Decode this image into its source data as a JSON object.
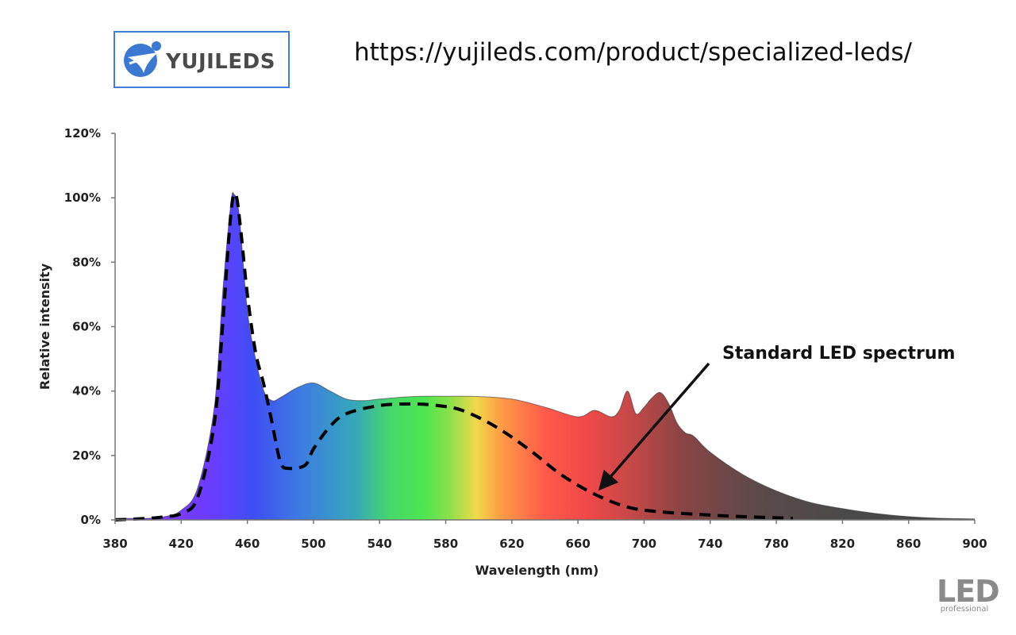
{
  "header": {
    "logo_text": "YUJILEDS",
    "url": "https://yujileds.com/product/specialized-leds/"
  },
  "footer": {
    "badge_main": "LED",
    "badge_sub": "professional"
  },
  "chart_data": {
    "type": "area",
    "xlabel": "Wavelength (nm)",
    "ylabel": "Relative intensity",
    "xlim": [
      380,
      900
    ],
    "ylim": [
      0,
      120
    ],
    "x_ticks": [
      380,
      420,
      460,
      500,
      540,
      580,
      620,
      660,
      700,
      740,
      780,
      820,
      860,
      900
    ],
    "y_ticks": [
      0,
      20,
      40,
      60,
      80,
      100,
      120
    ],
    "y_tick_labels": [
      "0%",
      "20%",
      "40%",
      "60%",
      "80%",
      "100%",
      "120%"
    ],
    "grid": false,
    "series": [
      {
        "style": "spectral-fill",
        "points": [
          [
            380,
            0.5
          ],
          [
            400,
            0.5
          ],
          [
            410,
            1
          ],
          [
            420,
            3
          ],
          [
            430,
            10
          ],
          [
            440,
            35
          ],
          [
            445,
            70
          ],
          [
            450,
            98
          ],
          [
            452,
            101
          ],
          [
            455,
            95
          ],
          [
            460,
            65
          ],
          [
            465,
            50
          ],
          [
            470,
            40
          ],
          [
            475,
            37
          ],
          [
            480,
            38
          ],
          [
            490,
            41
          ],
          [
            500,
            42.5
          ],
          [
            510,
            40
          ],
          [
            520,
            37.5
          ],
          [
            530,
            37
          ],
          [
            540,
            37.5
          ],
          [
            560,
            38.3
          ],
          [
            580,
            38.4
          ],
          [
            600,
            38.3
          ],
          [
            620,
            37.5
          ],
          [
            640,
            35
          ],
          [
            660,
            32
          ],
          [
            670,
            34
          ],
          [
            680,
            32
          ],
          [
            685,
            34
          ],
          [
            690,
            40
          ],
          [
            695,
            33
          ],
          [
            700,
            35
          ],
          [
            705,
            38
          ],
          [
            710,
            39.5
          ],
          [
            715,
            36
          ],
          [
            720,
            30
          ],
          [
            725,
            27
          ],
          [
            730,
            26
          ],
          [
            740,
            21
          ],
          [
            760,
            14
          ],
          [
            780,
            9
          ],
          [
            800,
            5.5
          ],
          [
            820,
            3.5
          ],
          [
            840,
            2
          ],
          [
            860,
            1
          ],
          [
            880,
            0.5
          ],
          [
            900,
            0.3
          ]
        ]
      },
      {
        "name": "Standard LED spectrum",
        "style": "dashed",
        "points": [
          [
            380,
            0
          ],
          [
            400,
            0.5
          ],
          [
            410,
            1
          ],
          [
            420,
            2
          ],
          [
            430,
            7
          ],
          [
            440,
            30
          ],
          [
            445,
            60
          ],
          [
            450,
            95
          ],
          [
            453,
            101
          ],
          [
            456,
            90
          ],
          [
            460,
            70
          ],
          [
            465,
            52
          ],
          [
            470,
            42
          ],
          [
            475,
            30
          ],
          [
            480,
            18
          ],
          [
            485,
            16
          ],
          [
            495,
            17
          ],
          [
            500,
            22
          ],
          [
            510,
            29
          ],
          [
            520,
            33
          ],
          [
            540,
            35.5
          ],
          [
            560,
            36
          ],
          [
            575,
            35.5
          ],
          [
            590,
            34
          ],
          [
            610,
            29
          ],
          [
            630,
            22
          ],
          [
            650,
            14
          ],
          [
            670,
            8
          ],
          [
            690,
            4
          ],
          [
            710,
            2.5
          ],
          [
            740,
            1.5
          ],
          [
            760,
            1
          ],
          [
            790,
            0.5
          ]
        ]
      }
    ],
    "annotations": [
      {
        "text": "Standard LED spectrum",
        "arrow_to": [
          672,
          9
        ]
      }
    ]
  }
}
